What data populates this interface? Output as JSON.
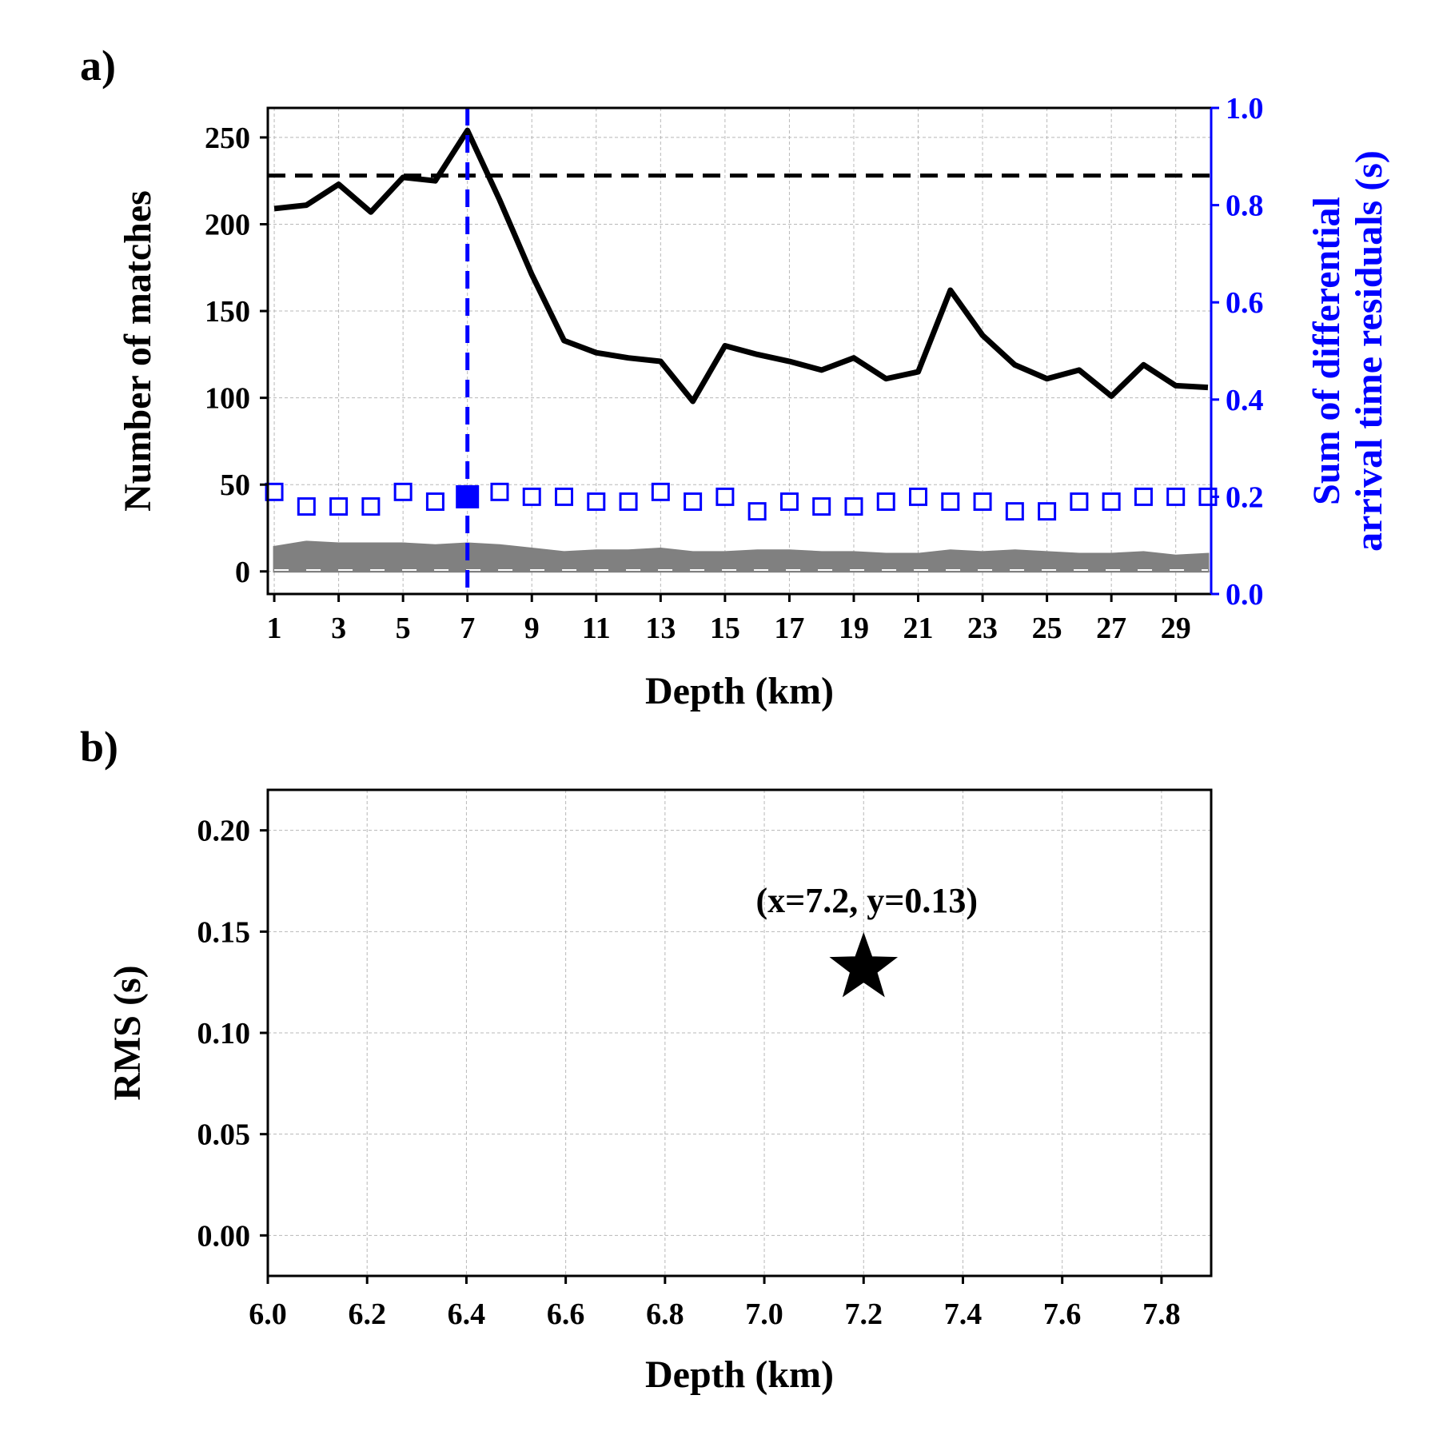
{
  "panel_a": {
    "label": "a)",
    "chart_data": {
      "type": "line",
      "xlabel": "Depth (km)",
      "ylabel": "Number of matches",
      "y2label_line1": "Sum of differential",
      "y2label_line2": "arrival time residuals (s)",
      "xlim": [
        0.8,
        30.1
      ],
      "ylim": [
        -13,
        267
      ],
      "y2lim": [
        0.0,
        1.0
      ],
      "xticks": [
        "1",
        "3",
        "5",
        "7",
        "9",
        "11",
        "13",
        "15",
        "17",
        "19",
        "21",
        "23",
        "25",
        "27",
        "29"
      ],
      "yticks": [
        "0",
        "50",
        "100",
        "150",
        "200",
        "250"
      ],
      "y2ticks": [
        "0.0",
        "0.2",
        "0.4",
        "0.6",
        "0.8",
        "1.0"
      ],
      "grid": true,
      "best_depth": 7,
      "threshold": 228,
      "series": [
        {
          "values_x": [
            1,
            2,
            3,
            4,
            5,
            6,
            7,
            8,
            9,
            10,
            11,
            12,
            13,
            14,
            15,
            16,
            17,
            18,
            19,
            20,
            21,
            22,
            23,
            24,
            25,
            26,
            27,
            28,
            29,
            30
          ],
          "values_y": [
            209,
            211,
            223,
            207,
            227,
            225,
            254,
            214,
            171,
            133,
            126,
            123,
            121,
            98,
            130,
            125,
            121,
            116,
            123,
            111,
            115,
            162,
            136,
            119,
            111,
            116,
            101,
            119,
            107,
            106
          ],
          "color": "#000000",
          "axis": "left"
        },
        {
          "values_x": [
            1,
            2,
            3,
            4,
            5,
            6,
            7,
            8,
            9,
            10,
            11,
            12,
            13,
            14,
            15,
            16,
            17,
            18,
            19,
            20,
            21,
            22,
            23,
            24,
            25,
            26,
            27,
            28,
            29,
            30
          ],
          "values_y": [
            0.21,
            0.18,
            0.18,
            0.18,
            0.21,
            0.19,
            0.2,
            0.21,
            0.2,
            0.2,
            0.19,
            0.19,
            0.21,
            0.19,
            0.2,
            0.17,
            0.19,
            0.18,
            0.18,
            0.19,
            0.2,
            0.19,
            0.19,
            0.17,
            0.17,
            0.19,
            0.19,
            0.2,
            0.2,
            0.2
          ],
          "color": "#0000ff",
          "axis": "right"
        },
        {
          "values_x": [
            1,
            2,
            3,
            4,
            5,
            6,
            7,
            8,
            9,
            10,
            11,
            12,
            13,
            14,
            15,
            16,
            17,
            18,
            19,
            20,
            21,
            22,
            23,
            24,
            25,
            26,
            27,
            28,
            29,
            30
          ],
          "values_y": [
            14,
            17,
            16,
            16,
            16,
            15,
            16,
            15,
            13,
            11,
            12,
            12,
            13,
            11,
            11,
            12,
            12,
            11,
            11,
            10,
            10,
            12,
            11,
            12,
            11,
            10,
            10,
            11,
            9,
            10
          ],
          "color": "#808080",
          "axis": "left"
        }
      ]
    }
  },
  "panel_b": {
    "label": "b)",
    "chart_data": {
      "type": "scatter",
      "xlabel": "Depth (km)",
      "ylabel": "RMS (s)",
      "xlim": [
        6.0,
        1.9
      ],
      "ylim": [
        -0.02,
        0.22
      ],
      "xticks": [
        "6.0",
        "6.2",
        "6.4",
        "6.6",
        "6.8",
        "7.0",
        "7.2",
        "7.4",
        "7.6",
        "7.8"
      ],
      "yticks": [
        "0.00",
        "0.05",
        "0.10",
        "0.15",
        "0.20"
      ],
      "grid": true,
      "point": {
        "x": 7.2,
        "y": 0.132,
        "marker": "star",
        "color": "#000000"
      },
      "annotation": "(x=7.2, y=0.13)"
    }
  }
}
